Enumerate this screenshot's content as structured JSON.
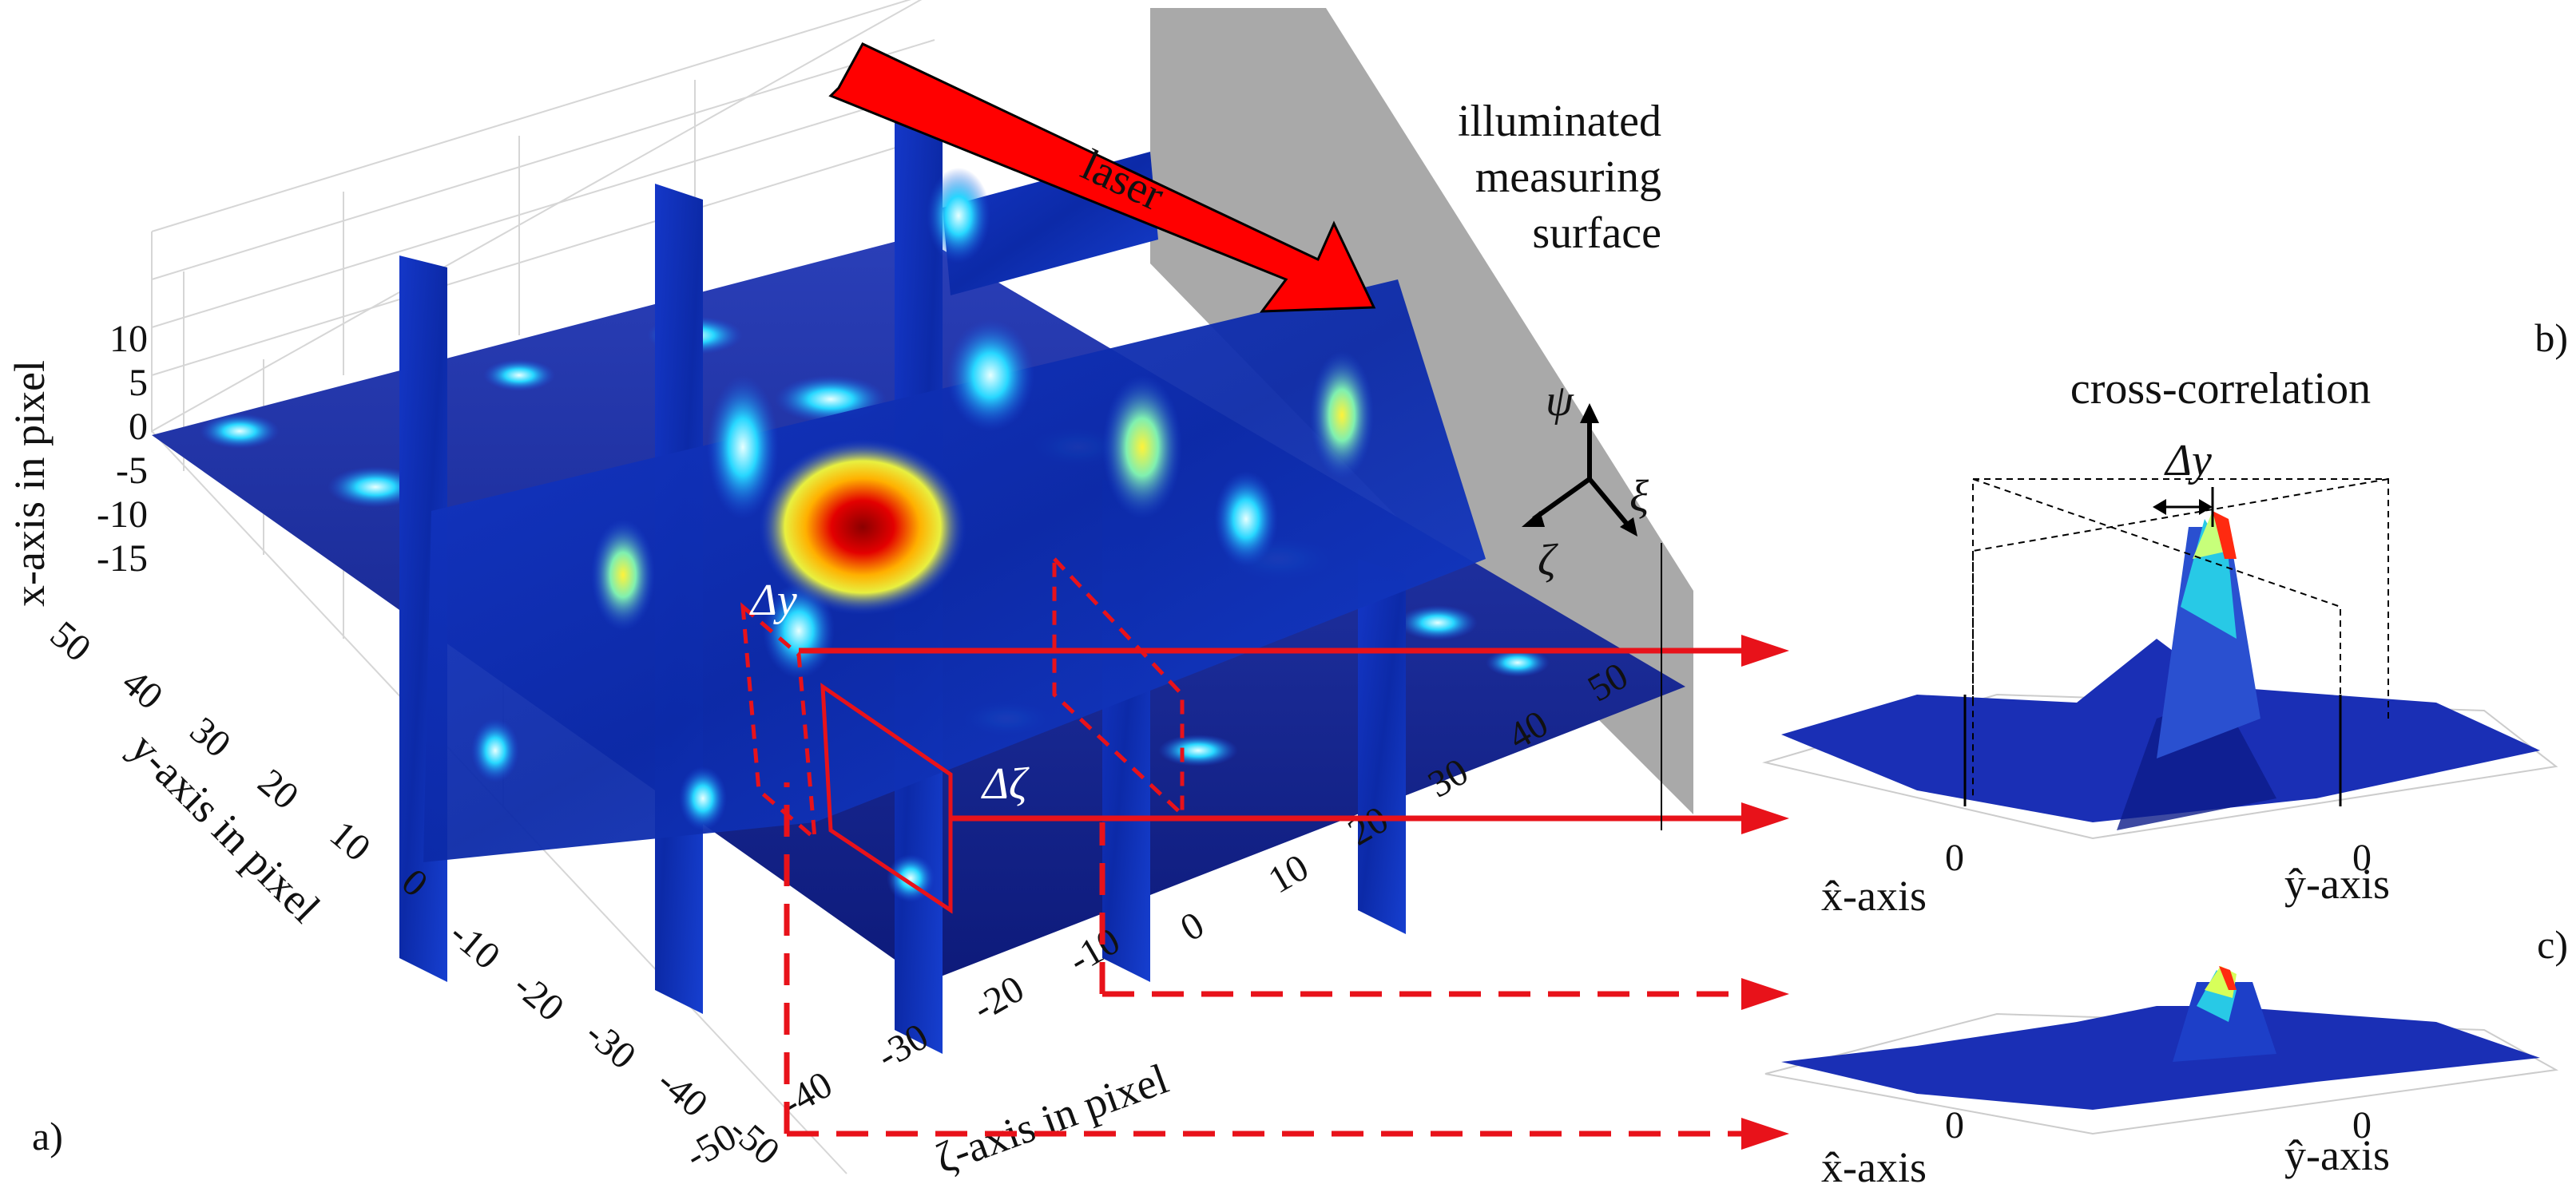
{
  "panels": {
    "a": "a)",
    "b": "b)",
    "c": "c)"
  },
  "labels": {
    "laser": "laser",
    "surface_line1": "illuminated",
    "surface_line2": "measuring",
    "surface_line3": "surface",
    "cross_correlation": "cross-correlation",
    "delta_y": "Δy",
    "delta_zeta": "Δζ",
    "psi": "ψ",
    "xi": "ξ",
    "zeta": "ζ"
  },
  "axes": {
    "x_axis_label": "x-axis in pixel",
    "y_axis_label": "y-axis in pixel",
    "zeta_axis_label": "ζ-axis in pixel",
    "x_ticks": [
      "10",
      "5",
      "0",
      "-5",
      "-10",
      "-15"
    ],
    "y_ticks": [
      "50",
      "40",
      "30",
      "20",
      "10",
      "0",
      "-10",
      "-20",
      "-30",
      "-40",
      "-50"
    ],
    "zeta_ticks": [
      "-50",
      "-40",
      "-30",
      "-20",
      "-10",
      "0",
      "10",
      "20",
      "30",
      "40",
      "50"
    ]
  },
  "correlation_b": {
    "xhat_label": "x̂-axis",
    "yhat_label": "ŷ-axis",
    "xhat_zero": "0",
    "yhat_zero": "0"
  },
  "correlation_c": {
    "xhat_label": "x̂-axis",
    "yhat_label": "ŷ-axis",
    "xhat_zero": "0",
    "yhat_zero": "0"
  },
  "colors": {
    "arrow_red": "#e8121a",
    "laser_red": "#ff0000",
    "surface_gray": "#a9a9a9",
    "jet_low": "#0a1f9e",
    "jet_high": "#d40000"
  }
}
